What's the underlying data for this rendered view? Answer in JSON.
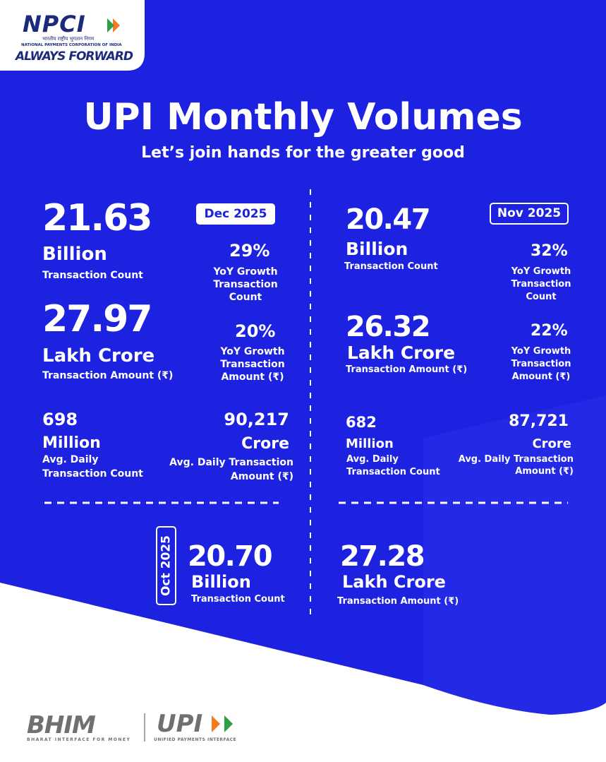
{
  "header": {
    "logo": "NPCI",
    "logo_hindi": "भारतीय राष्ट्रीय भुगतान निगम",
    "logo_org": "NATIONAL PAYMENTS CORPORATION OF INDIA",
    "tagline": "ALWAYS FORWARD"
  },
  "title": "UPI Monthly Volumes",
  "subtitle": "Let’s join hands for the greater good",
  "months": [
    {
      "label": "Dec 2025",
      "count_value": "21.63",
      "count_unit": "Billion",
      "count_label": "Transaction Count",
      "count_growth": "29%",
      "count_growth_label": "YoY Growth Transaction Count",
      "amount_value": "27.97",
      "amount_unit": "Lakh Crore",
      "amount_label": "Transaction Amount (₹)",
      "amount_growth": "20%",
      "amount_growth_label": "YoY Growth Transaction Amount (₹)",
      "daily_count": "698",
      "daily_count_unit": "Million",
      "daily_count_label": "Avg. Daily Transaction Count",
      "daily_amount": "90,217",
      "daily_amount_unit": "Crore",
      "daily_amount_label": "Avg. Daily Transaction Amount (₹)"
    },
    {
      "label": "Nov 2025",
      "count_value": "20.47",
      "count_unit": "Billion",
      "count_label": "Transaction Count",
      "count_growth": "32%",
      "count_growth_label": "YoY Growth Transaction Count",
      "amount_value": "26.32",
      "amount_unit": "Lakh Crore",
      "amount_label": "Transaction Amount (₹)",
      "amount_growth": "22%",
      "amount_growth_label": "YoY Growth Transaction Amount (₹)",
      "daily_count": "682",
      "daily_count_unit": "Million",
      "daily_count_label": "Avg. Daily Transaction Count",
      "daily_amount": "87,721",
      "daily_amount_unit": "Crore",
      "daily_amount_label": "Avg. Daily Transaction Amount (₹)"
    },
    {
      "label": "Oct 2025",
      "count_value": "20.70",
      "count_unit": "Billion",
      "count_label": "Transaction Count",
      "amount_value": "27.28",
      "amount_unit": "Lakh Crore",
      "amount_label": "Transaction Amount (₹)"
    }
  ],
  "footer": {
    "bhim": "BHIM",
    "bhim_sub": "BHARAT INTERFACE FOR MONEY",
    "upi": "UPI",
    "upi_sub": "UNIFIED PAYMENTS INTERFACE"
  }
}
